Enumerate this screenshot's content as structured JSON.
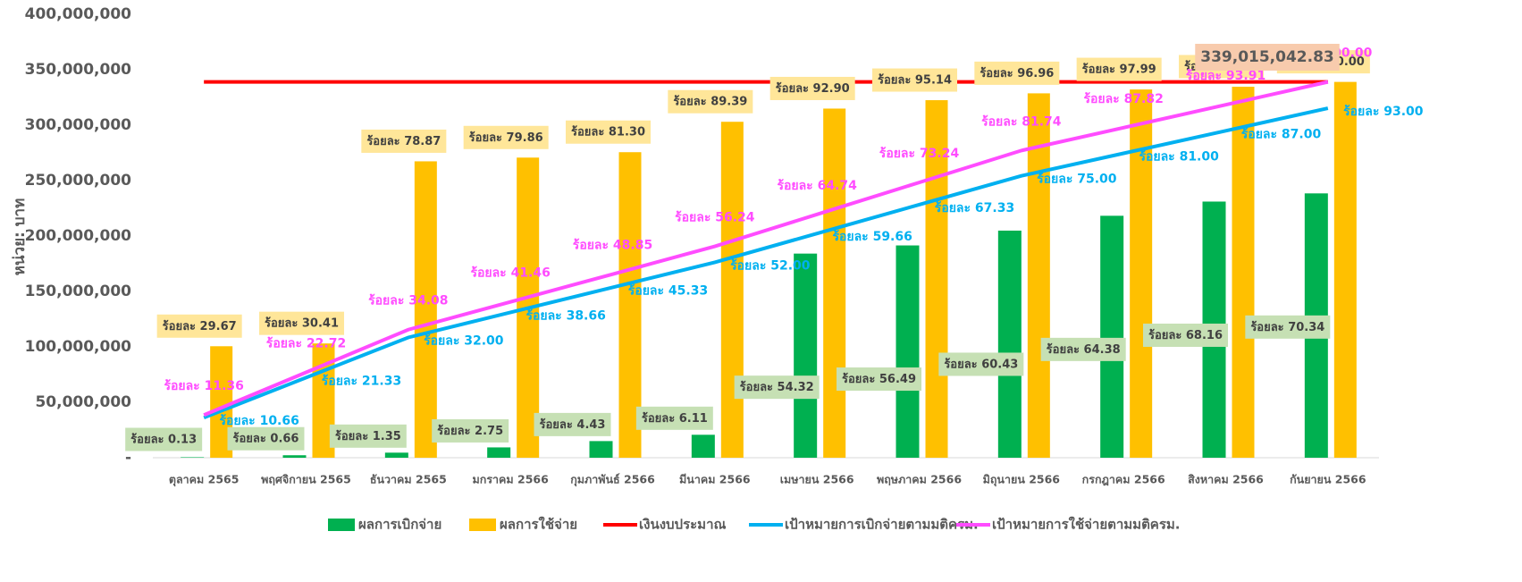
{
  "chart_data": {
    "type": "bar_line",
    "y_axis_label": "หน่วย: บาท",
    "categories": [
      "ตุลาคม 2565",
      "พฤศจิกายน 2565",
      "ธันวาคม 2565",
      "มกราคม 2566",
      "กุมภาพันธ์ 2566",
      "มีนาคม 2566",
      "เมษายน 2566",
      "พฤษภาคม 2566",
      "มิถุนายน 2566",
      "กรกฎาคม 2566",
      "สิงหาคม 2566",
      "กันยายน 2566"
    ],
    "ylim": [
      0,
      400000000
    ],
    "yticks": [
      {
        "value": 0,
        "label": "-"
      },
      {
        "value": 50000000,
        "label": "50,000,000"
      },
      {
        "value": 100000000,
        "label": "100,000,000"
      },
      {
        "value": 150000000,
        "label": "150,000,000"
      },
      {
        "value": 200000000,
        "label": "200,000,000"
      },
      {
        "value": 250000000,
        "label": "250,000,000"
      },
      {
        "value": 300000000,
        "label": "300,000,000"
      },
      {
        "value": 350000000,
        "label": "350,000,000"
      },
      {
        "value": 400000000,
        "label": "400,000,000"
      }
    ],
    "annotation": "339,015,042.83",
    "series": [
      {
        "name": "ผลการเบิกจ่าย",
        "kind": "bar",
        "color": "#00b050",
        "label_bg": "#c6e0b4",
        "values": [
          440000,
          2240000,
          4580000,
          9320000,
          15020000,
          20710000,
          184150000,
          191510000,
          204870000,
          218260000,
          231070000,
          238460000
        ],
        "value_labels": [
          "ร้อยละ 0.13",
          "ร้อยละ 0.66",
          "ร้อยละ 1.35",
          "ร้อยละ 2.75",
          "ร้อยละ 4.43",
          "ร้อยละ 6.11",
          "ร้อยละ 54.32",
          "ร้อยละ 56.49",
          "ร้อยละ 60.43",
          "ร้อยละ 64.38",
          "ร้อยละ 68.16",
          "ร้อยละ 70.34"
        ]
      },
      {
        "name": "ผลการใช้จ่าย",
        "kind": "bar",
        "color": "#ffc000",
        "label_bg": "#ffe699",
        "values": [
          100580000,
          103100000,
          267380000,
          270740000,
          275620000,
          303050000,
          314950000,
          322540000,
          328710000,
          332200000,
          334670000,
          339020000
        ],
        "value_labels": [
          "ร้อยละ 29.67",
          "ร้อยละ 30.41",
          "ร้อยละ 78.87",
          "ร้อยละ 79.86",
          "ร้อยละ 81.30",
          "ร้อยละ 89.39",
          "ร้อยละ 92.90",
          "ร้อยละ 95.14",
          "ร้อยละ 96.96",
          "ร้อยละ 97.99",
          "ร้อยละ 98.72",
          "ร้อยละ 100.00"
        ]
      },
      {
        "name": "เงินงบประมาณ",
        "kind": "line",
        "color": "#ff0000",
        "values": [
          339015042.83,
          339015042.83,
          339015042.83,
          339015042.83,
          339015042.83,
          339015042.83,
          339015042.83,
          339015042.83,
          339015042.83,
          339015042.83,
          339015042.83,
          339015042.83
        ]
      },
      {
        "name": "เป้าหมายการเบิกจ่ายตามมติครม.",
        "kind": "line",
        "color": "#00b0f0",
        "label_dx": 62,
        "label_dy": 4,
        "values": [
          36140000,
          72310000,
          108480000,
          131060000,
          153680000,
          176290000,
          202250000,
          228260000,
          254260000,
          274600000,
          294940000,
          315280000
        ],
        "value_labels": [
          "ร้อยละ 10.66",
          "ร้อยละ 21.33",
          "ร้อยละ 32.00",
          "ร้อยละ 38.66",
          "ร้อยละ 45.33",
          "ร้อยละ 52.00",
          "ร้อยละ 59.66",
          "ร้อยละ 67.33",
          "ร้อยละ 75.00",
          "ร้อยละ 81.00",
          "ร้อยละ 87.00",
          "ร้อยละ 93.00"
        ]
      },
      {
        "name": "เป้าหมายการใช้จ่ายตามมติครม.",
        "kind": "line",
        "color": "#ff4cff",
        "label_dx": 0,
        "label_dy": -32,
        "values": [
          38510000,
          77020000,
          115540000,
          140560000,
          165610000,
          190660000,
          219480000,
          248300000,
          277110000,
          297720000,
          318370000,
          339020000
        ],
        "value_labels": [
          "ร้อยละ 11.36",
          "ร้อยละ 22.72",
          "ร้อยละ 34.08",
          "ร้อยละ 41.46",
          "ร้อยละ 48.85",
          "ร้อยละ 56.24",
          "ร้อยละ 64.74",
          "ร้อยละ 73.24",
          "ร้อยละ 81.74",
          "ร้อยละ 87.82",
          "ร้อยละ 93.91",
          "ร้อยละ 100.00"
        ]
      }
    ]
  }
}
